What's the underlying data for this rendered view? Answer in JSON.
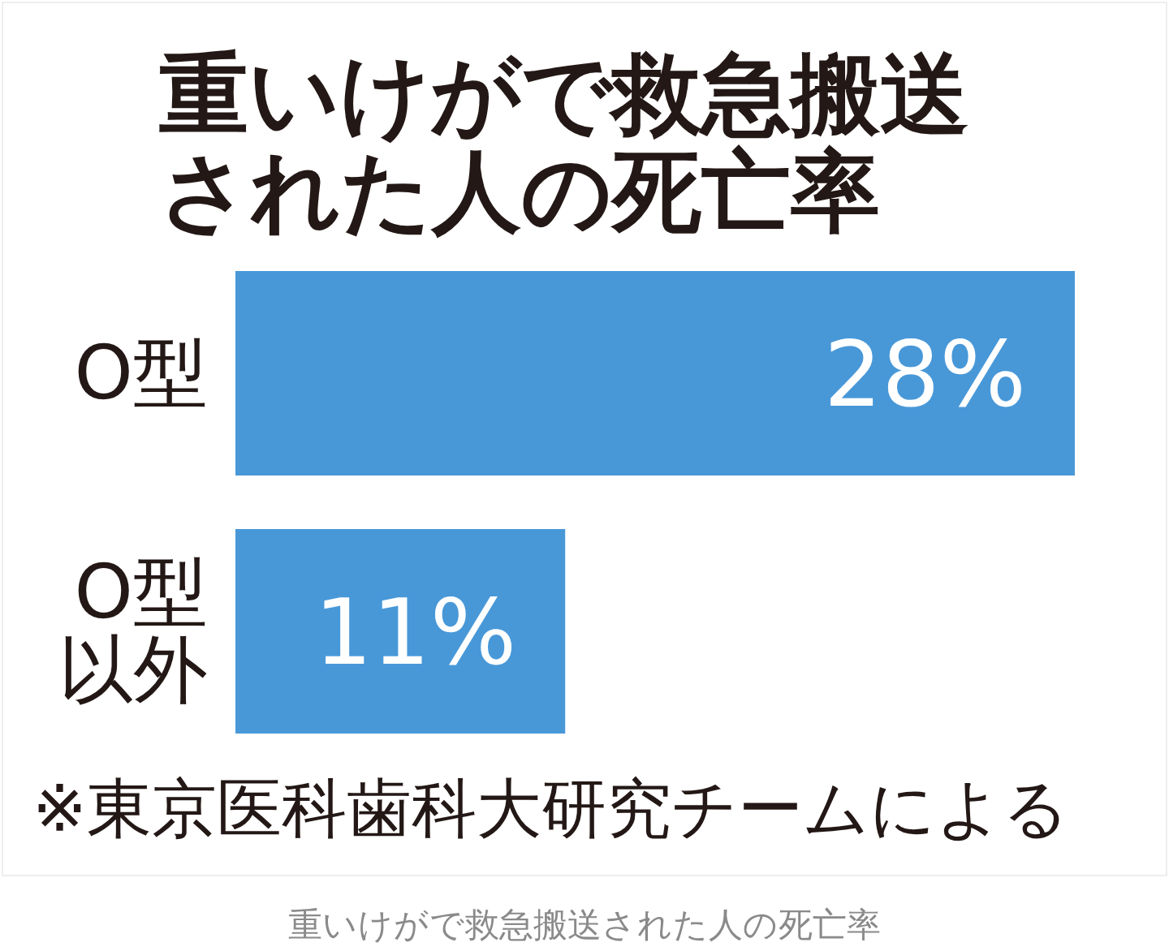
{
  "chart_data": {
    "type": "bar",
    "orientation": "horizontal",
    "title": "重いけがで救急搬送された人の死亡率",
    "categories": [
      "O型",
      "O型以外"
    ],
    "values": [
      28,
      11
    ],
    "color": "#4898d8",
    "value_labels": [
      "28%",
      "11%"
    ],
    "annotations": [
      "※東京医科歯科大研究チームによる",
      "重いけがで救急搬送された人の死亡率"
    ]
  }
}
